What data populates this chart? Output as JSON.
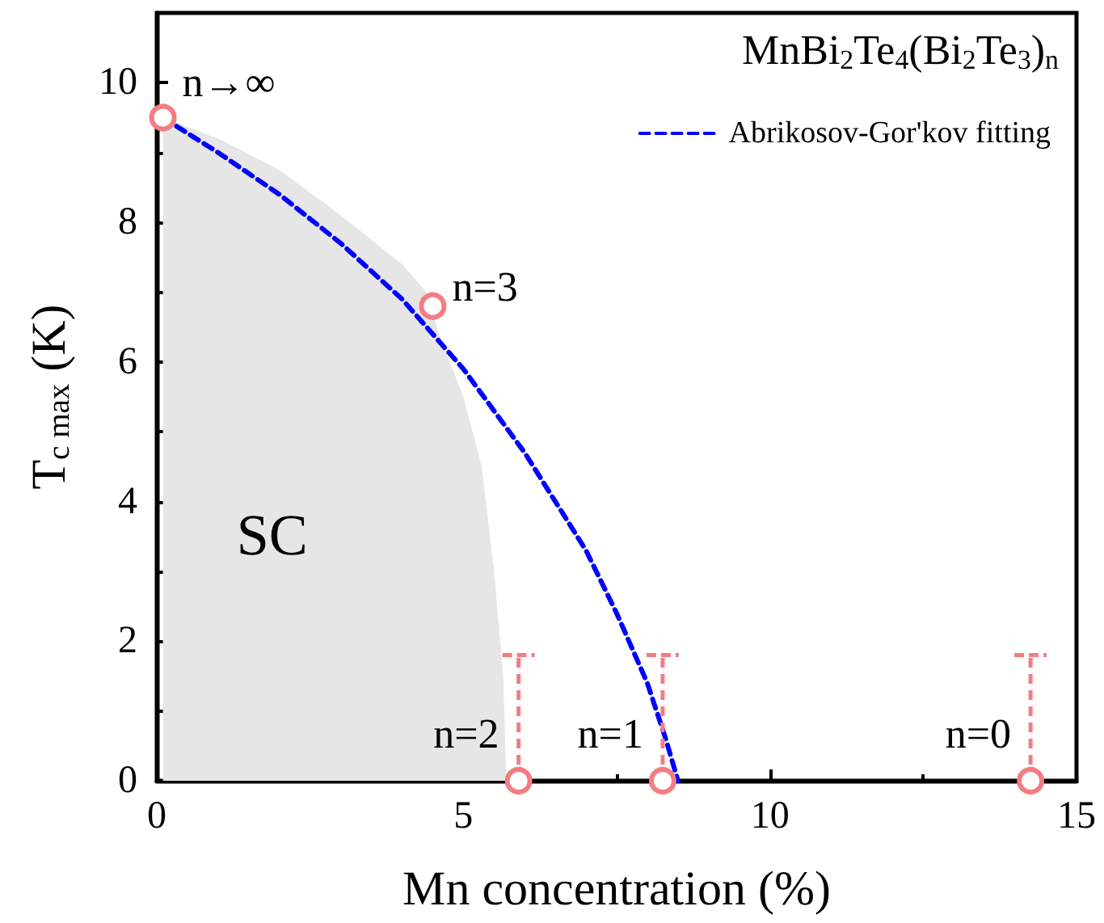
{
  "chart_data": {
    "type": "scatter",
    "xlabel": "Mn concentration (%)",
    "ylabel": "T$_{c max}$ (K)",
    "legend_title": "MnBi$_{2}$Te$_{4}$(Bi$_{2}$Te$_{3}$)$_{n}$",
    "xlim": [
      0,
      15
    ],
    "xticks": [
      0,
      5,
      10,
      15
    ],
    "ylim": [
      0,
      11
    ],
    "yticks": [
      0,
      2,
      4,
      6,
      8,
      10
    ],
    "grid": false,
    "legend": "top right",
    "series": [
      {
        "type": "area",
        "color": "#e6e6e6",
        "x": [
          0.1,
          1,
          2,
          3,
          4,
          4.4,
          4.6,
          5,
          5.3,
          5.5,
          5.65,
          5.7
        ],
        "values": [
          9.5,
          9.2,
          8.75,
          8.1,
          7.4,
          7.0,
          6.4,
          5.5,
          4.5,
          3.0,
          1.5,
          0
        ]
      },
      {
        "type": "line",
        "name": "Abrikosov-Gor'kov fitting",
        "color": "#0000ff",
        "line_style": "dashed",
        "marker": "none",
        "x": [
          0.1,
          1,
          2,
          3,
          4,
          5,
          6,
          7,
          7.5,
          8,
          8.3,
          8.5
        ],
        "values": [
          9.5,
          9.0,
          8.4,
          7.7,
          6.9,
          5.9,
          4.7,
          3.3,
          2.4,
          1.4,
          0.6,
          0
        ]
      },
      {
        "color": "#f47c82",
        "marker": "circle",
        "x": [
          0.1,
          4.5,
          5.9,
          8.25,
          14.25
        ],
        "values": [
          9.5,
          6.8,
          0,
          0,
          0
        ],
        "errors": [
          null,
          null,
          [
            0,
            1.8
          ],
          [
            0,
            1.8
          ],
          [
            0,
            1.8
          ]
        ]
      }
    ],
    "annotations": [
      {
        "text": "n→∞",
        "x": 0.1,
        "y": 9.5
      },
      {
        "text": "n=3",
        "x": 4.5,
        "y": 6.8
      },
      "SC",
      {
        "text": "n=2",
        "x": 5.9,
        "y": 0
      },
      {
        "text": "n=1",
        "x": 8.25,
        "y": 0
      },
      {
        "text": "n=0",
        "x": 14.25,
        "y": 0
      }
    ]
  }
}
